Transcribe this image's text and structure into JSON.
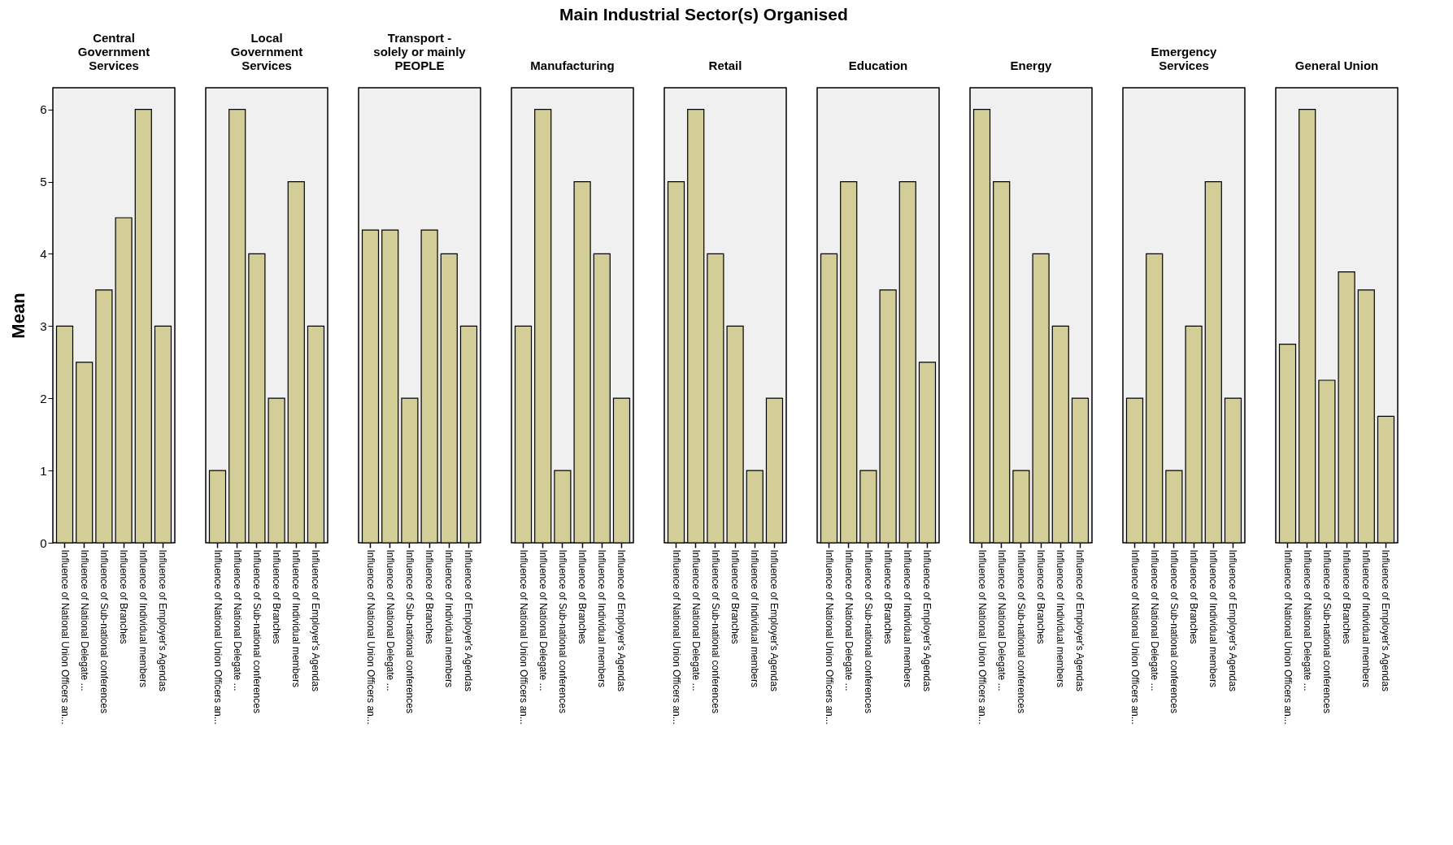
{
  "chart_data": [
    {
      "type": "bar",
      "title": "Central\nGovernment\nServices",
      "annotations": [
        "Main Industrial Sector(s) Organised"
      ],
      "ylabel": "Mean",
      "categories": [
        "Influence of National Union Officers an...",
        "Influence of National Delegate ...",
        "Influence of Sub-national conferences",
        "Influence of Branches",
        "Influence of Individual members",
        "Influence of Employer's Agendas"
      ],
      "values": [
        3,
        2.5,
        3.5,
        4.5,
        6,
        3
      ],
      "color": "#d3ce97",
      "ylim": [
        0,
        6.3
      ],
      "yticks": [
        0,
        1,
        2,
        3,
        4,
        5,
        6
      ],
      "grid": false
    },
    {
      "type": "bar",
      "title": "Local\nGovernment\nServices",
      "categories": [
        "Influence of National Union Officers an...",
        "Influence of National Delegate ...",
        "Influence of Sub-national conferences",
        "Influence of Branches",
        "Influence of Individual members",
        "Influence of Employer's Agendas"
      ],
      "values": [
        1,
        6,
        4,
        2,
        5,
        3
      ],
      "color": "#d3ce97",
      "ylim": [
        0,
        6.3
      ],
      "tick_labels": "x",
      "grid": false
    },
    {
      "type": "bar",
      "title": "Transport -\nsolely or mainly\nPEOPLE",
      "categories": [
        "Influence of National Union Officers an...",
        "Influence of National Delegate ...",
        "Influence of Sub-national conferences",
        "Influence of Branches",
        "Influence of Individual members",
        "Influence of Employer's Agendas"
      ],
      "values": [
        4.33,
        4.33,
        2,
        4.33,
        4,
        3
      ],
      "color": "#d3ce97",
      "ylim": [
        0,
        6.3
      ],
      "tick_labels": "x",
      "grid": false
    },
    {
      "type": "bar",
      "title": "Manufacturing",
      "categories": [
        "Influence of National Union Officers an...",
        "Influence of National Delegate ...",
        "Influence of Sub-national conferences",
        "Influence of Branches",
        "Influence of Individual members",
        "Influence of Employer's Agendas"
      ],
      "values": [
        3,
        6,
        1,
        5,
        4,
        2
      ],
      "color": "#d3ce97",
      "ylim": [
        0,
        6.3
      ],
      "tick_labels": "x",
      "grid": false
    },
    {
      "type": "bar",
      "title": "Retail",
      "categories": [
        "Influence of National Union Officers an...",
        "Influence of National Delegate ...",
        "Influence of Sub-national conferences",
        "Influence of Branches",
        "Influence of Individual members",
        "Influence of Employer's Agendas"
      ],
      "values": [
        5,
        6,
        4,
        3,
        1,
        2
      ],
      "color": "#d3ce97",
      "ylim": [
        0,
        6.3
      ],
      "tick_labels": "x",
      "grid": false
    },
    {
      "type": "bar",
      "title": "Education",
      "categories": [
        "Influence of National Union Officers an...",
        "Influence of National Delegate ...",
        "Influence of Sub-national conferences",
        "Influence of Branches",
        "Influence of Individual members",
        "Influence of Employer's Agendas"
      ],
      "values": [
        4,
        5,
        1,
        3.5,
        5,
        2.5
      ],
      "color": "#d3ce97",
      "ylim": [
        0,
        6.3
      ],
      "tick_labels": "x",
      "grid": false
    },
    {
      "type": "bar",
      "title": "Energy",
      "categories": [
        "Influence of National Union Officers an...",
        "Influence of National Delegate ...",
        "Influence of Sub-national conferences",
        "Influence of Branches",
        "Influence of Individual members",
        "Influence of Employer's Agendas"
      ],
      "values": [
        6,
        5,
        1,
        4,
        3,
        2
      ],
      "color": "#d3ce97",
      "ylim": [
        0,
        6.3
      ],
      "tick_labels": "x",
      "grid": false
    },
    {
      "type": "bar",
      "title": "Emergency\nServices",
      "categories": [
        "Influence of National Union Officers an...",
        "Influence of National Delegate ...",
        "Influence of Sub-national conferences",
        "Influence of Branches",
        "Influence of Individual members",
        "Influence of Employer's Agendas"
      ],
      "values": [
        2,
        4,
        1,
        3,
        5,
        2
      ],
      "color": "#d3ce97",
      "ylim": [
        0,
        6.3
      ],
      "tick_labels": "x",
      "grid": false
    },
    {
      "type": "bar",
      "title": "General Union",
      "categories": [
        "Influence of National Union Officers an...",
        "Influence of National Delegate ...",
        "Influence of Sub-national conferences",
        "Influence of Branches",
        "Influence of Individual members",
        "Influence of Employer's Agendas"
      ],
      "values": [
        2.75,
        6,
        2.25,
        3.75,
        3.5,
        1.75
      ],
      "color": "#d3ce97",
      "ylim": [
        0,
        6.3
      ],
      "tick_labels": "x",
      "grid": false
    }
  ]
}
